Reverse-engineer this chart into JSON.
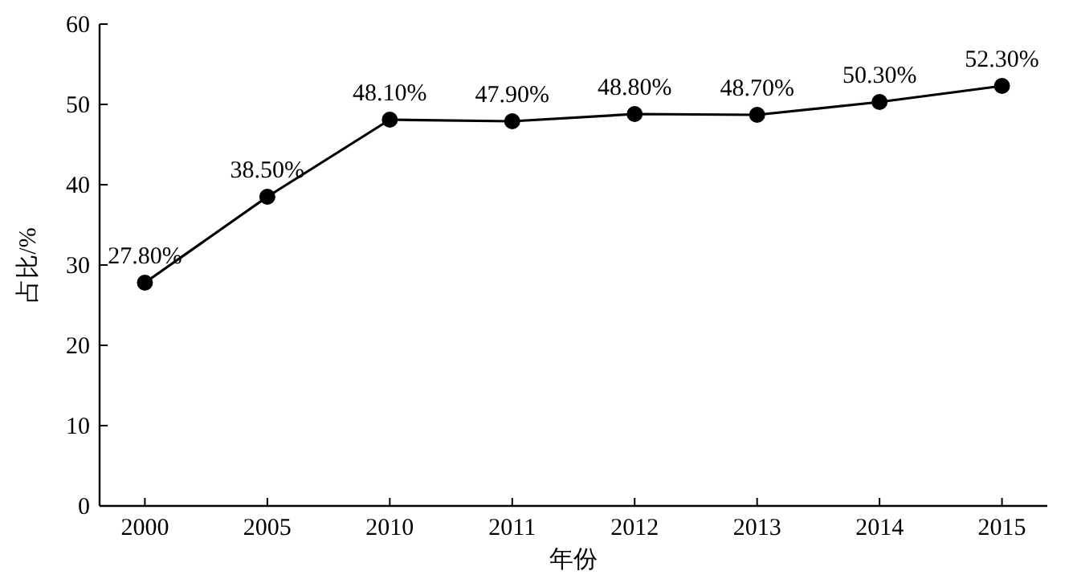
{
  "chart_data": {
    "type": "line",
    "xlabel": "年份",
    "ylabel": "占比/%",
    "categories": [
      "2000",
      "2005",
      "2010",
      "2011",
      "2012",
      "2013",
      "2014",
      "2015"
    ],
    "series": [
      {
        "color": "#000000",
        "values": [
          27.8,
          38.5,
          48.1,
          47.9,
          48.8,
          48.7,
          50.3,
          52.3
        ],
        "value_labels": [
          "27.80%",
          "38.50%",
          "48.10%",
          "47.90%",
          "48.80%",
          "48.70%",
          "50.30%",
          "52.30%"
        ]
      }
    ],
    "ylim": [
      0,
      60
    ],
    "yticks": [
      0,
      10,
      20,
      30,
      40,
      50,
      60
    ],
    "marker": "circle",
    "line_style": "solid"
  }
}
